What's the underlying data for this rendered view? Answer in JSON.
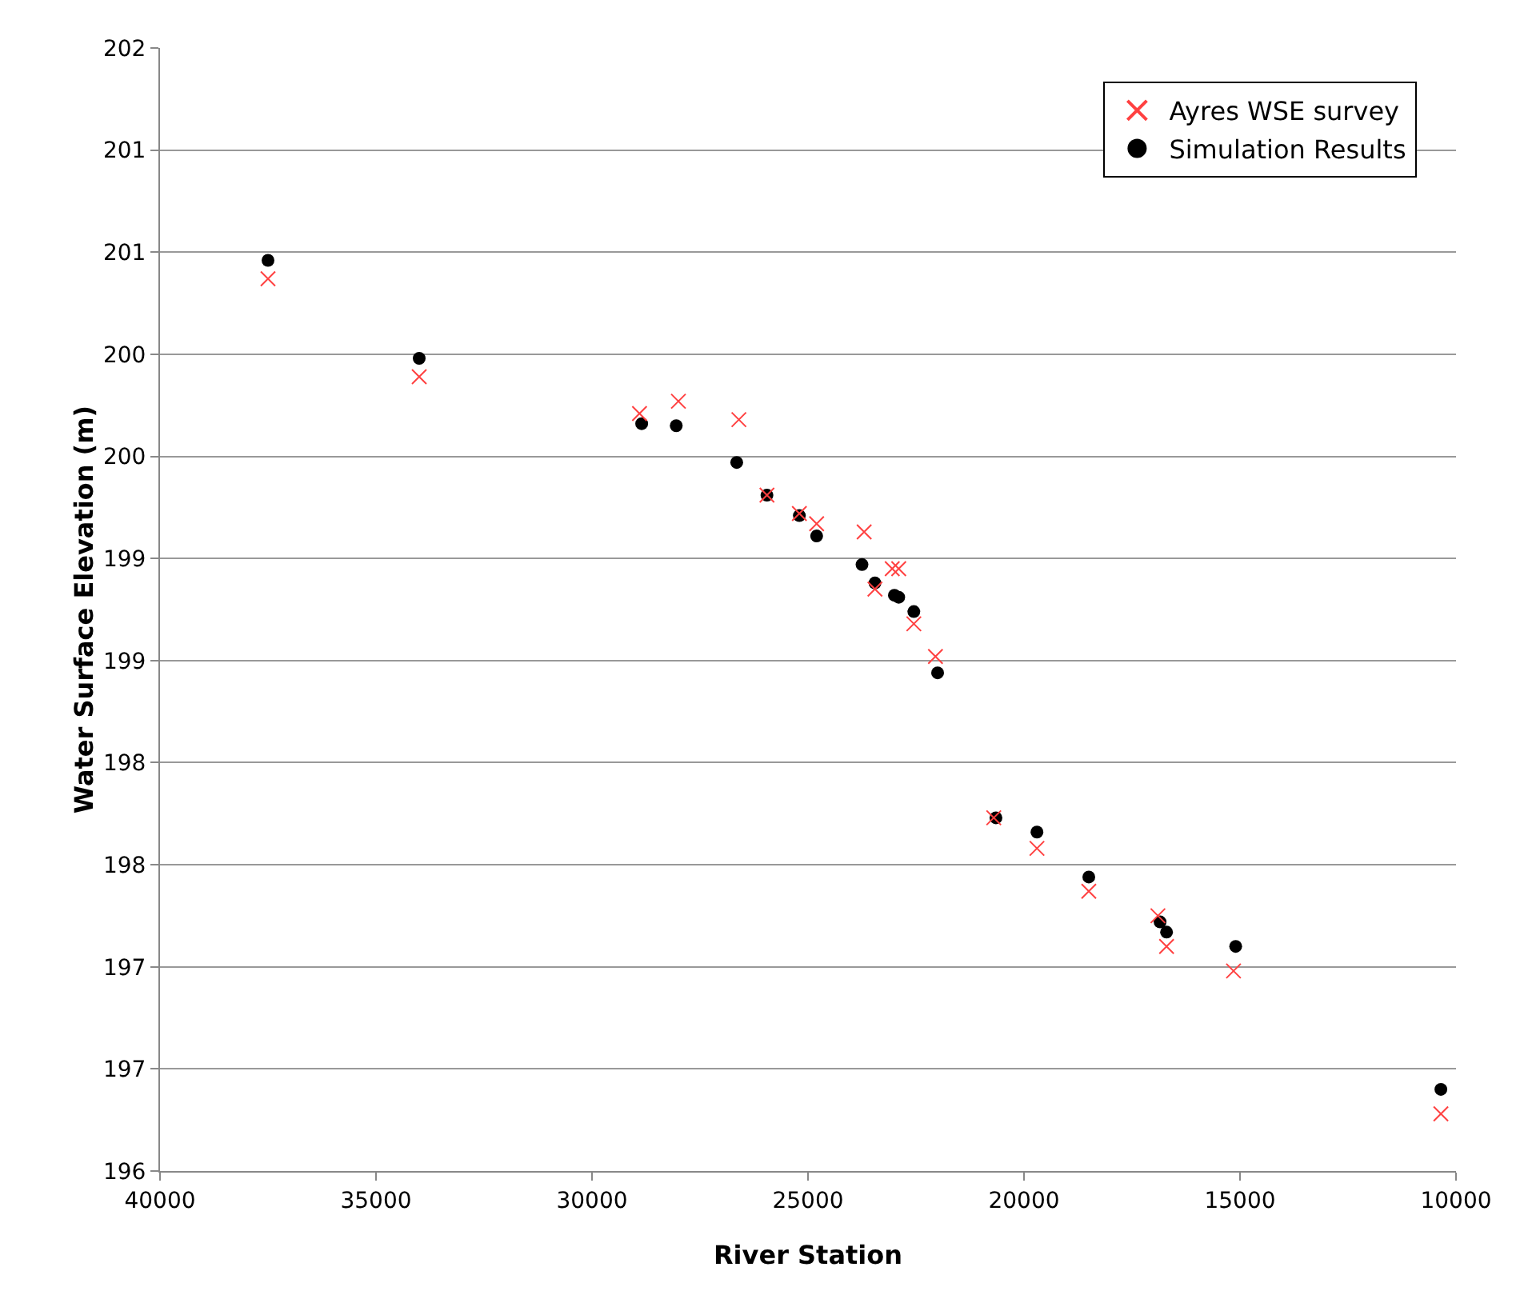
{
  "chart_data": {
    "type": "scatter",
    "xlabel": "River Station",
    "ylabel": "Water Surface Elevation (m)",
    "xlim": [
      40000,
      10000
    ],
    "xticks": [
      40000,
      35000,
      30000,
      25000,
      20000,
      15000,
      10000
    ],
    "ylim": [
      196,
      201.5
    ],
    "yticks": [
      196,
      {
        "value": 196.5,
        "label": "197"
      },
      197,
      {
        "value": 197.5,
        "label": "198"
      },
      198,
      {
        "value": 198.5,
        "label": "199"
      },
      199,
      {
        "value": 199.5,
        "label": "200"
      },
      200,
      {
        "value": 200.5,
        "label": "201"
      },
      201,
      {
        "value": 201.5,
        "label": "202"
      }
    ],
    "grid": "y",
    "legend": "top right",
    "series": [
      {
        "name": "Ayres WSE survey",
        "color": "#ff4040",
        "marker": "cross",
        "x": [
          37500,
          34000,
          28900,
          28000,
          26600,
          25950,
          25200,
          24800,
          23700,
          23450,
          23050,
          22900,
          22550,
          22050,
          20700,
          19700,
          18500,
          16900,
          16700,
          15150,
          10350
        ],
        "values": [
          200.37,
          199.89,
          199.71,
          199.77,
          199.68,
          199.31,
          199.22,
          199.17,
          199.13,
          198.85,
          198.95,
          198.95,
          198.68,
          198.52,
          197.73,
          197.58,
          197.37,
          197.25,
          197.1,
          196.98,
          196.28
        ]
      },
      {
        "name": "Simulation Results",
        "color": "#000000",
        "marker": "circle",
        "x": [
          37500,
          34000,
          28850,
          28050,
          26650,
          25950,
          25200,
          24800,
          23750,
          23450,
          23000,
          22900,
          22550,
          22000,
          20650,
          19700,
          18500,
          16850,
          16700,
          15100,
          10350
        ],
        "values": [
          200.46,
          199.98,
          199.66,
          199.65,
          199.47,
          199.31,
          199.21,
          199.11,
          198.97,
          198.88,
          198.82,
          198.81,
          198.74,
          198.44,
          197.73,
          197.66,
          197.44,
          197.22,
          197.17,
          197.1,
          196.4
        ]
      }
    ]
  }
}
